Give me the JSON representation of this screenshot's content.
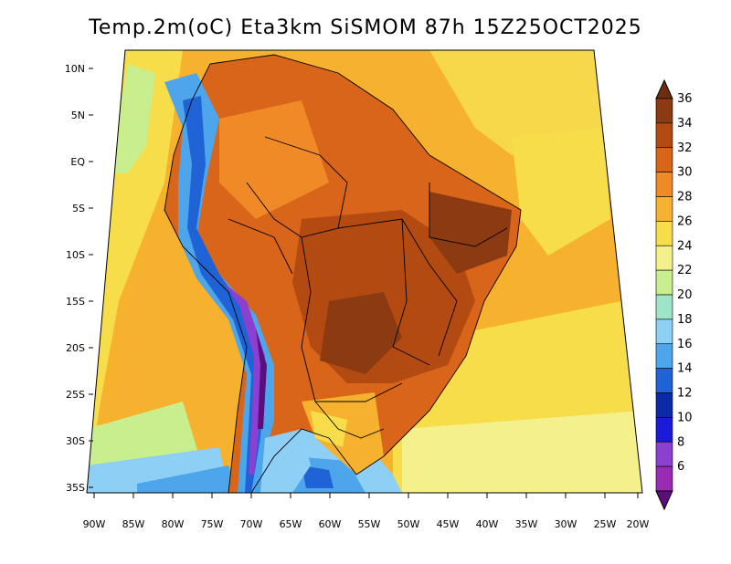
{
  "title": "Temp.2m(oC) Eta3km SiSMOM 87h 15Z25OCT2025",
  "map": {
    "variable": "2 m air temperature",
    "units": "oC",
    "model": "Eta3km SiSMOM",
    "forecast_hour": "87h",
    "valid_time": "15Z25OCT2025",
    "lat_ticks": [
      "10N",
      "5N",
      "EQ",
      "5S",
      "10S",
      "15S",
      "20S",
      "25S",
      "30S",
      "35S"
    ],
    "lon_ticks": [
      "90W",
      "85W",
      "80W",
      "75W",
      "70W",
      "65W",
      "60W",
      "55W",
      "50W",
      "45W",
      "40W",
      "35W",
      "30W",
      "25W",
      "20W"
    ],
    "extent": {
      "lon": [
        -91,
        -20
      ],
      "lat": [
        -38,
        11
      ]
    }
  },
  "colorbar": {
    "labels": [
      "36",
      "34",
      "32",
      "30",
      "28",
      "26",
      "24",
      "22",
      "20",
      "18",
      "16",
      "14",
      "12",
      "10",
      "8",
      "6"
    ],
    "colors": [
      "#6b2e0f",
      "#8b3a12",
      "#b34a12",
      "#d8651a",
      "#f08a26",
      "#f6b22e",
      "#f7dd4a",
      "#f4f08c",
      "#c8ee8e",
      "#9ee4c8",
      "#8ecff5",
      "#4da6ec",
      "#1f63d6",
      "#0a2aa8",
      "#1a1ad8",
      "#8c3fd0",
      "#9b2bb3",
      "#5a0f7a"
    ]
  }
}
